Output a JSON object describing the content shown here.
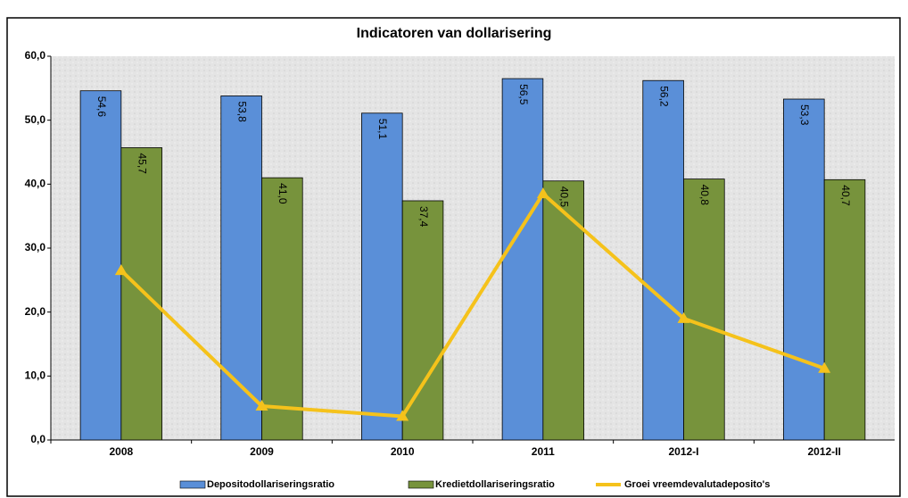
{
  "chart_data": {
    "type": "bar_line",
    "title": "Indicatoren van dollarisering",
    "categories": [
      "2008",
      "2009",
      "2010",
      "2011",
      "2012-I",
      "2012-II"
    ],
    "series": [
      {
        "name": "Depositodollariseringsratio",
        "color": "#5a8fd8",
        "type": "bar",
        "values": [
          54.6,
          53.8,
          51.1,
          56.5,
          56.2,
          53.3
        ],
        "value_labels": [
          "54,6",
          "53,8",
          "51,1",
          "56,5",
          "56,2",
          "53,3"
        ]
      },
      {
        "name": "Kredietdollariseringsratio",
        "color": "#77933c",
        "type": "bar",
        "values": [
          45.7,
          41.0,
          37.4,
          40.5,
          40.8,
          40.7
        ],
        "value_labels": [
          "45,7",
          "41,0",
          "37,4",
          "40,5",
          "40,8",
          "40,7"
        ]
      },
      {
        "name": "Groei vreemdevalutadeposito's",
        "color": "#f5c21b",
        "type": "line",
        "values": [
          26.5,
          5.3,
          3.7,
          38.5,
          19.0,
          11.2
        ]
      }
    ],
    "ylim": [
      0,
      60
    ],
    "yticks": [
      {
        "value": 0,
        "label": "0,0"
      },
      {
        "value": 10,
        "label": "10,0"
      },
      {
        "value": 20,
        "label": "20,0"
      },
      {
        "value": 30,
        "label": "30,0"
      },
      {
        "value": 40,
        "label": "40,0"
      },
      {
        "value": 50,
        "label": "50,0"
      },
      {
        "value": 60,
        "label": "60,0"
      }
    ],
    "legend": "bottom"
  }
}
